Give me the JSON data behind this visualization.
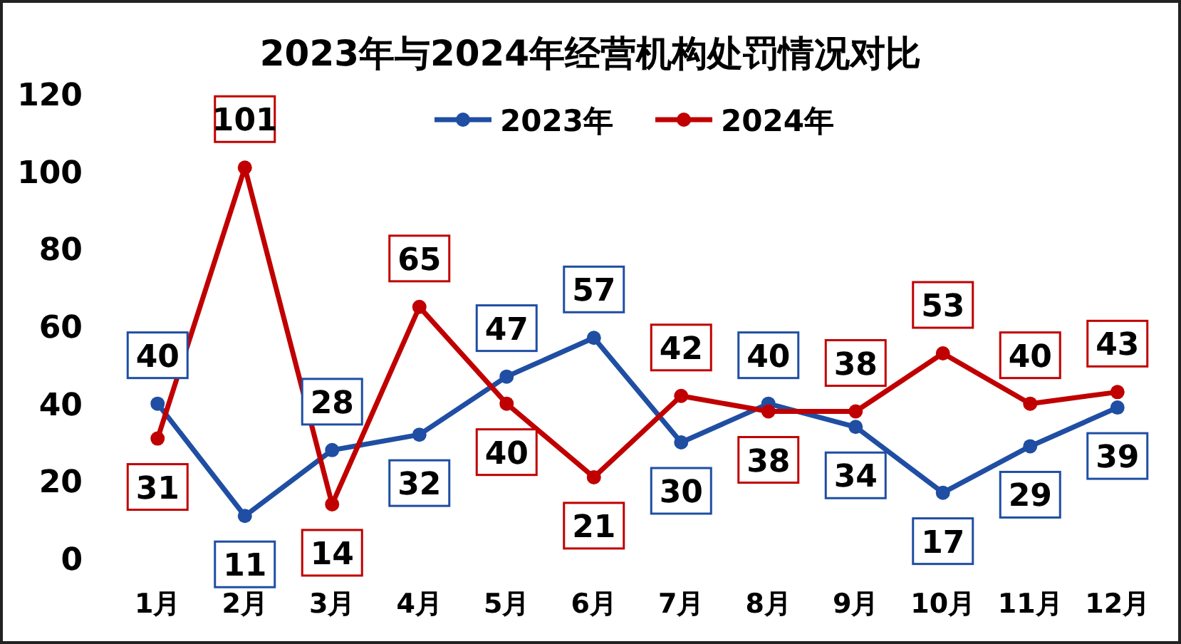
{
  "chart_data": {
    "type": "line",
    "title": "2023年与2024年经营机构处罚情况对比",
    "categories": [
      "1月",
      "2月",
      "3月",
      "4月",
      "5月",
      "6月",
      "7月",
      "8月",
      "9月",
      "10月",
      "11月",
      "12月"
    ],
    "series": [
      {
        "name": "2023年",
        "color": "#1f4ea3",
        "values": [
          40,
          11,
          28,
          32,
          47,
          57,
          30,
          40,
          34,
          17,
          29,
          39
        ]
      },
      {
        "name": "2024年",
        "color": "#c00000",
        "values": [
          31,
          101,
          14,
          65,
          40,
          21,
          42,
          38,
          38,
          53,
          40,
          43
        ]
      }
    ],
    "ylim": [
      0,
      120
    ],
    "yticks": [
      0,
      20,
      40,
      60,
      80,
      100,
      120
    ],
    "data_labels": true,
    "marker": "circle",
    "line_style": "solid",
    "legend": "top"
  }
}
